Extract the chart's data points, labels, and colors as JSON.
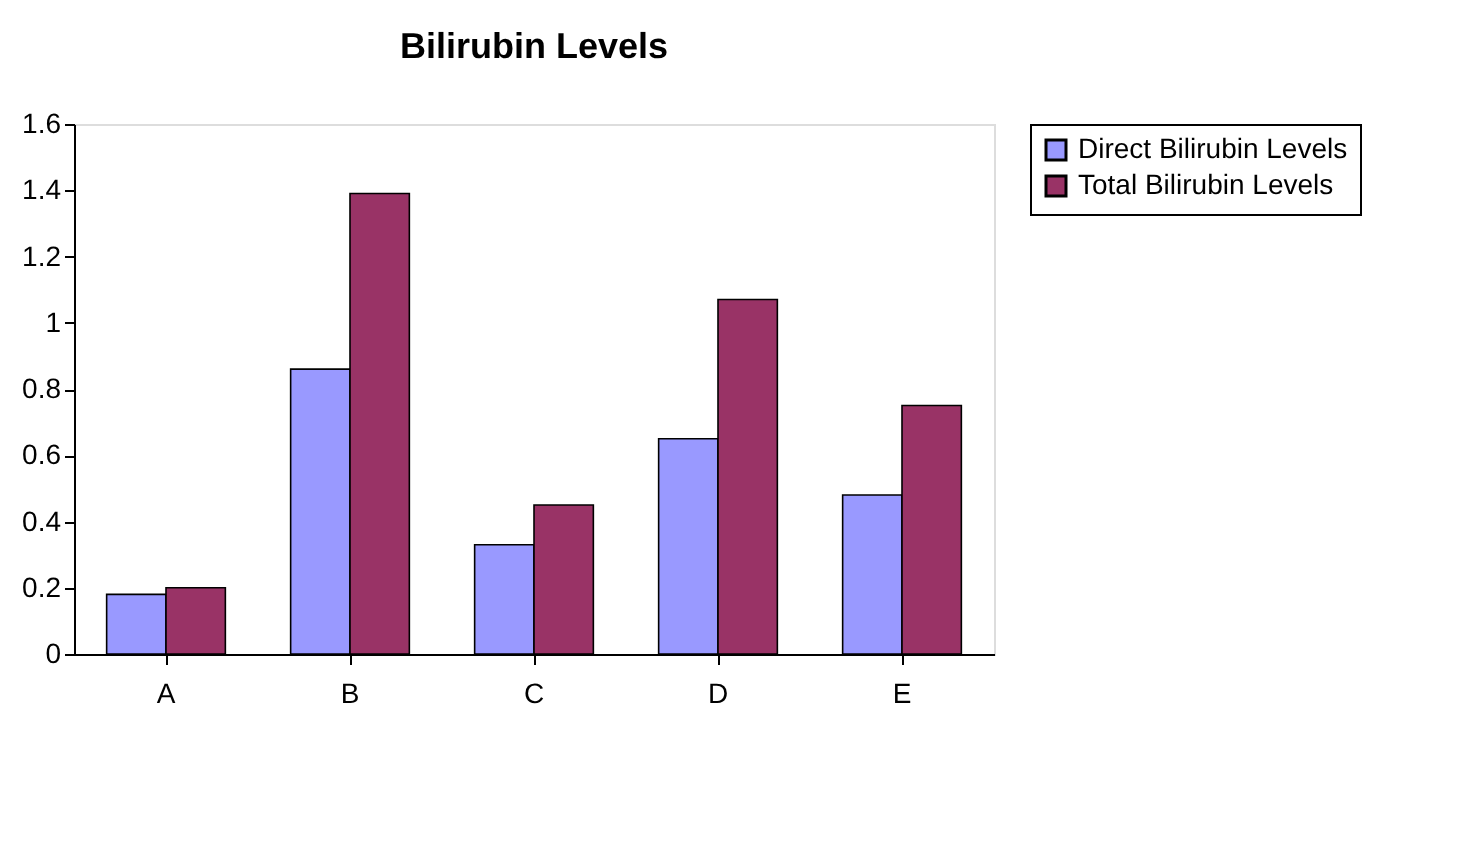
{
  "chart_data": {
    "type": "bar",
    "title": "Bilirubin Levels",
    "categories": [
      "A",
      "B",
      "C",
      "D",
      "E"
    ],
    "series": [
      {
        "name": "Direct Bilirubin Levels",
        "color": "#9999ff",
        "values": [
          0.18,
          0.86,
          0.33,
          0.65,
          0.48
        ]
      },
      {
        "name": "Total Bilirubin Levels",
        "color": "#993366",
        "values": [
          0.2,
          1.39,
          0.45,
          1.07,
          0.75
        ]
      }
    ],
    "ylim": [
      0,
      1.6
    ],
    "yticks": [
      0,
      0.2,
      0.4,
      0.6,
      0.8,
      1,
      1.2,
      1.4,
      1.6
    ],
    "grid": false,
    "legend": "right"
  }
}
